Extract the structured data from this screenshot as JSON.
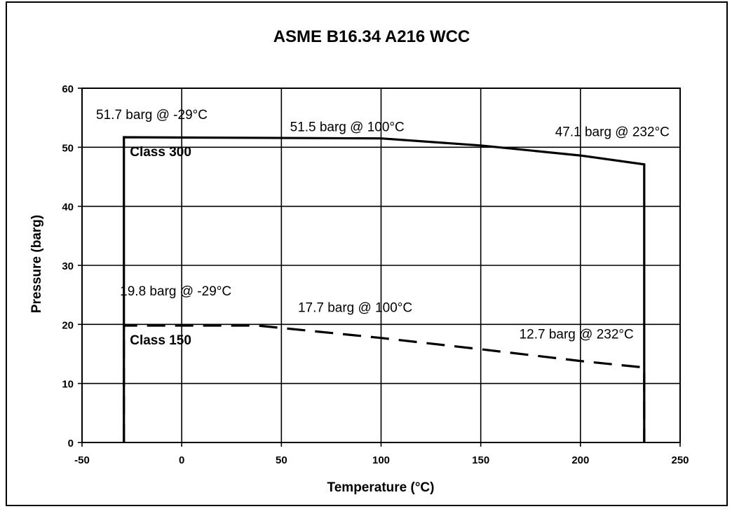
{
  "chart_data": {
    "type": "line",
    "title": "ASME B16.34 A216 WCC",
    "xlabel": "Temperature (°C)",
    "ylabel": "Pressure (barg)",
    "xlim": [
      -50,
      250
    ],
    "ylim": [
      0,
      60
    ],
    "xticks": [
      "-50",
      "0",
      "50",
      "100",
      "150",
      "200",
      "250"
    ],
    "yticks": [
      "0",
      "10",
      "20",
      "30",
      "40",
      "50",
      "60"
    ],
    "grid": true,
    "legend": "none",
    "series": [
      {
        "label": "Class 300",
        "style": "solid",
        "x": [
          -29,
          -29,
          100,
          150,
          200,
          232,
          232
        ],
        "y": [
          0,
          51.7,
          51.5,
          50.3,
          48.6,
          47.1,
          0
        ]
      },
      {
        "label": "Class 150",
        "style": "dashed",
        "x": [
          -29,
          -29,
          38,
          100,
          150,
          200,
          232,
          232
        ],
        "y": [
          0,
          19.8,
          19.8,
          17.7,
          15.8,
          13.8,
          12.7,
          0
        ]
      }
    ],
    "annotations": [
      {
        "text": "51.7 barg @ -29°C",
        "x": -15,
        "y": 54.8
      },
      {
        "text": "51.5 barg @ 100°C",
        "x": 83,
        "y": 52.7
      },
      {
        "text": "47.1 barg @ 232°C",
        "x": 216,
        "y": 51.9
      },
      {
        "text": "19.8 barg @ -29°C",
        "x": -3,
        "y": 24.9
      },
      {
        "text": "17.7 barg @ 100°C",
        "x": 87,
        "y": 22.1
      },
      {
        "text": "12.7 barg @ 232°C",
        "x": 198,
        "y": 17.6
      }
    ],
    "class_labels": [
      {
        "text": "Class 300",
        "x": -26,
        "y": 48.5
      },
      {
        "text": "Class 150",
        "x": -26,
        "y": 16.6
      }
    ]
  }
}
